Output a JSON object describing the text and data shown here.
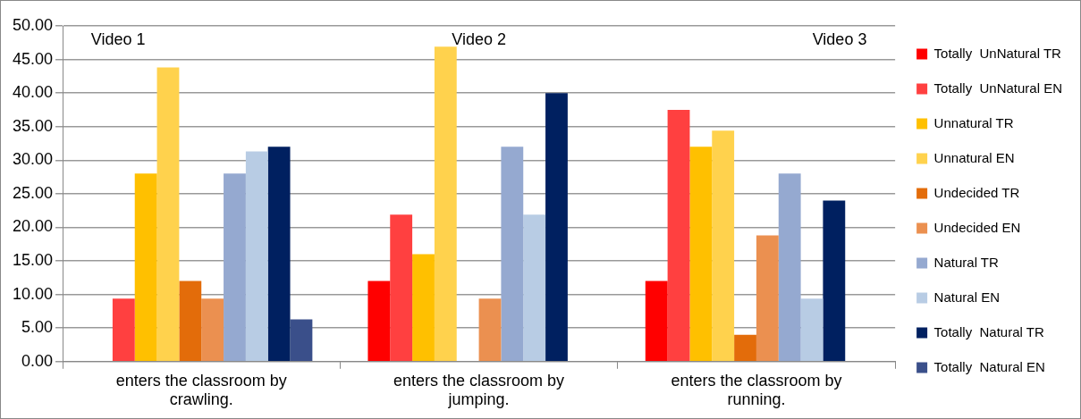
{
  "chart_data": {
    "type": "bar",
    "categories": [
      "enters the classroom by crawling.",
      "enters the classroom by jumping.",
      "enters the classroom by running."
    ],
    "series": [
      {
        "name": "Totally  UnNatural TR",
        "color": "#ff0000",
        "values": [
          0,
          12,
          12
        ]
      },
      {
        "name": "Totally  UnNatural EN",
        "color": "#ff4040",
        "values": [
          9.4,
          21.9,
          37.5
        ]
      },
      {
        "name": "Unnatural TR",
        "color": "#ffc000",
        "values": [
          28,
          16,
          32
        ]
      },
      {
        "name": "Unnatural EN",
        "color": "#ffd24d",
        "values": [
          43.8,
          46.9,
          34.4
        ]
      },
      {
        "name": "Undecided TR",
        "color": "#e36c0a",
        "values": [
          12,
          0,
          4
        ]
      },
      {
        "name": "Undecided EN",
        "color": "#eb9050",
        "values": [
          9.4,
          9.4,
          18.8
        ]
      },
      {
        "name": "Natural TR",
        "color": "#95a9d0",
        "values": [
          28,
          32,
          28
        ]
      },
      {
        "name": "Natural EN",
        "color": "#b8cce4",
        "values": [
          31.3,
          21.9,
          9.4
        ]
      },
      {
        "name": "Totally  Natural TR",
        "color": "#002060",
        "values": [
          32,
          40,
          24
        ]
      },
      {
        "name": "Totally  Natural EN",
        "color": "#3a4f8a",
        "values": [
          6.3,
          0,
          0
        ]
      }
    ],
    "ylim": [
      0,
      50
    ],
    "yticks": [
      {
        "value": 0,
        "label": "0.00"
      },
      {
        "value": 5,
        "label": "5.00"
      },
      {
        "value": 10,
        "label": "10.00"
      },
      {
        "value": 15,
        "label": "15.00"
      },
      {
        "value": 20,
        "label": "20.00"
      },
      {
        "value": 25,
        "label": "25.00"
      },
      {
        "value": 30,
        "label": "30.00"
      },
      {
        "value": 35,
        "label": "35.00"
      },
      {
        "value": 40,
        "label": "40.00"
      },
      {
        "value": 45,
        "label": "45.00"
      },
      {
        "value": 50,
        "label": "50.00"
      }
    ],
    "grid": "y",
    "legend": "right",
    "annotations": [
      "Video 1",
      "Video 2",
      "Video 3"
    ]
  }
}
